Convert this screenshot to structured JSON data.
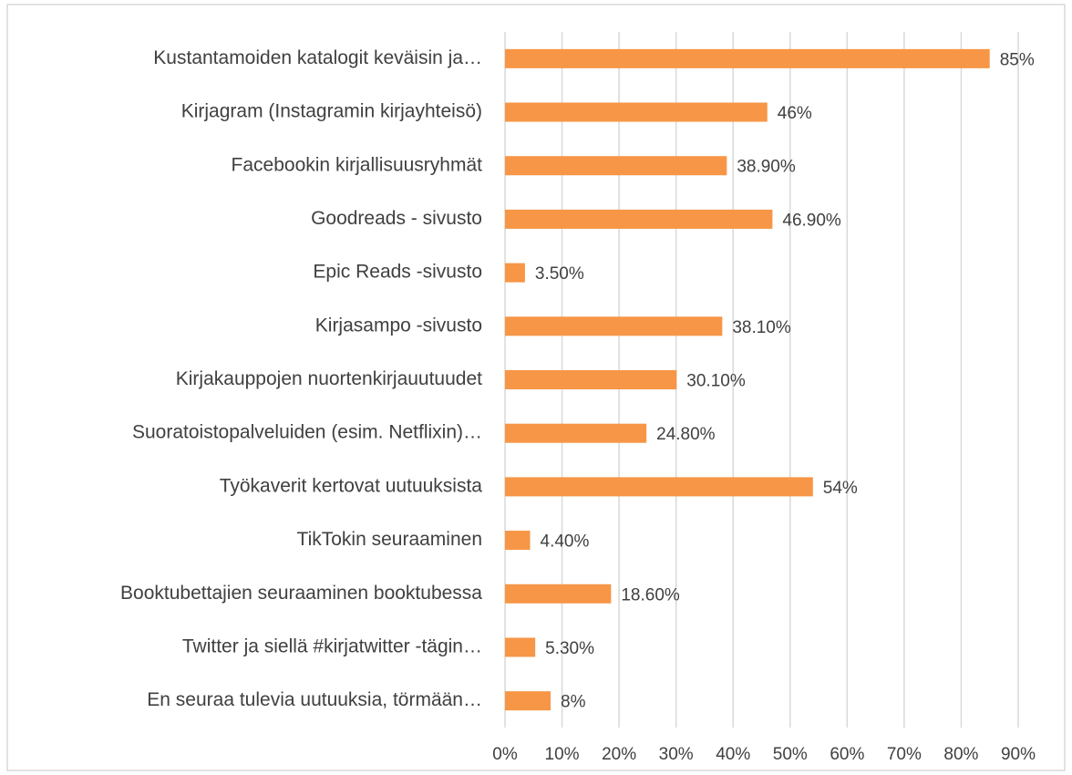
{
  "chart_data": {
    "type": "barh",
    "categories": [
      "Kustantamoiden katalogit keväisin ja…",
      "Kirjagram (Instagramin kirjayhteisö)",
      "Facebookin kirjallisuusryhmät",
      "Goodreads - sivusto",
      "Epic Reads -sivusto",
      "Kirjasampo -sivusto",
      "Kirjakauppojen nuortenkirjauutuudet",
      "Suoratoistopalveluiden (esim. Netflixin)…",
      "Työkaverit kertovat uutuuksista",
      "TikTokin seuraaminen",
      "Booktubettajien seuraaminen booktubessa",
      "Twitter ja siellä #kirjatwitter -tägin…",
      "En seuraa tulevia uutuuksia, törmään…"
    ],
    "values": [
      85,
      46,
      38.9,
      46.9,
      3.5,
      38.1,
      30.1,
      24.8,
      54,
      4.4,
      18.6,
      5.3,
      8
    ],
    "value_labels": [
      "85%",
      "46%",
      "38.90%",
      "46.90%",
      "3.50%",
      "38.10%",
      "30.10%",
      "24.80%",
      "54%",
      "4.40%",
      "18.60%",
      "5.30%",
      "8%"
    ],
    "color": "#f79646",
    "xlim": [
      0,
      90
    ],
    "xticks": [
      {
        "value": 0,
        "label": "0%"
      },
      {
        "value": 10,
        "label": "10%"
      },
      {
        "value": 20,
        "label": "20%"
      },
      {
        "value": 30,
        "label": "30%"
      },
      {
        "value": 40,
        "label": "40%"
      },
      {
        "value": 50,
        "label": "50%"
      },
      {
        "value": 60,
        "label": "60%"
      },
      {
        "value": 70,
        "label": "70%"
      },
      {
        "value": 80,
        "label": "80%"
      },
      {
        "value": 90,
        "label": "90%"
      }
    ],
    "grid": true
  }
}
